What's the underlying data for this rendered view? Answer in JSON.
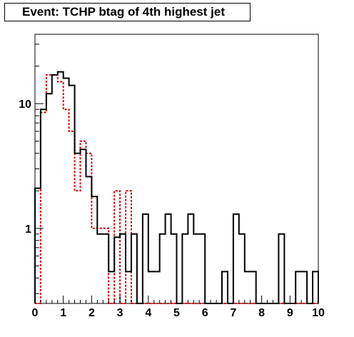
{
  "chart_data": {
    "type": "histogram",
    "title": "Event: TCHP btag of 4th highest jet",
    "xlabel": "",
    "ylabel": "",
    "log_y": true,
    "xlim": [
      0,
      10
    ],
    "ylim": [
      0.25,
      36
    ],
    "x_ticks": [
      "0",
      "1",
      "2",
      "3",
      "4",
      "5",
      "6",
      "7",
      "8",
      "9",
      "10"
    ],
    "y_ticks": [
      "1",
      "10"
    ],
    "y_tick_values": [
      1,
      10
    ],
    "bin_width": 0.2,
    "series": [
      {
        "style": "solid",
        "color": "#000000",
        "values": [
          2.1,
          9,
          12,
          17,
          18,
          16,
          14,
          4,
          4.3,
          2.6,
          1.8,
          0.9,
          0.9,
          0.45,
          0.85,
          0.9,
          0.45,
          0.9,
          0,
          1.3,
          0.45,
          0.45,
          0.9,
          1.3,
          0.9,
          0,
          0.9,
          1.3,
          0.9,
          0.9,
          0,
          0,
          0,
          0.45,
          0,
          1.3,
          0.9,
          0.45,
          0.45,
          0,
          0,
          0,
          0,
          0.9,
          0,
          0,
          0.45,
          0.45,
          0,
          0.45
        ]
      },
      {
        "style": "dashed",
        "color": "#dd0000",
        "values": [
          0,
          8.5,
          17,
          17,
          15,
          9,
          6,
          2,
          5,
          4,
          1,
          1,
          1,
          0,
          2,
          0,
          2,
          0,
          0,
          0,
          0,
          0,
          0,
          0,
          0,
          0,
          0,
          0,
          0,
          0,
          0,
          0,
          0,
          0,
          0,
          0,
          0,
          0,
          0,
          0,
          0,
          0,
          0,
          0,
          0,
          0,
          0,
          0,
          0,
          0
        ]
      }
    ]
  }
}
